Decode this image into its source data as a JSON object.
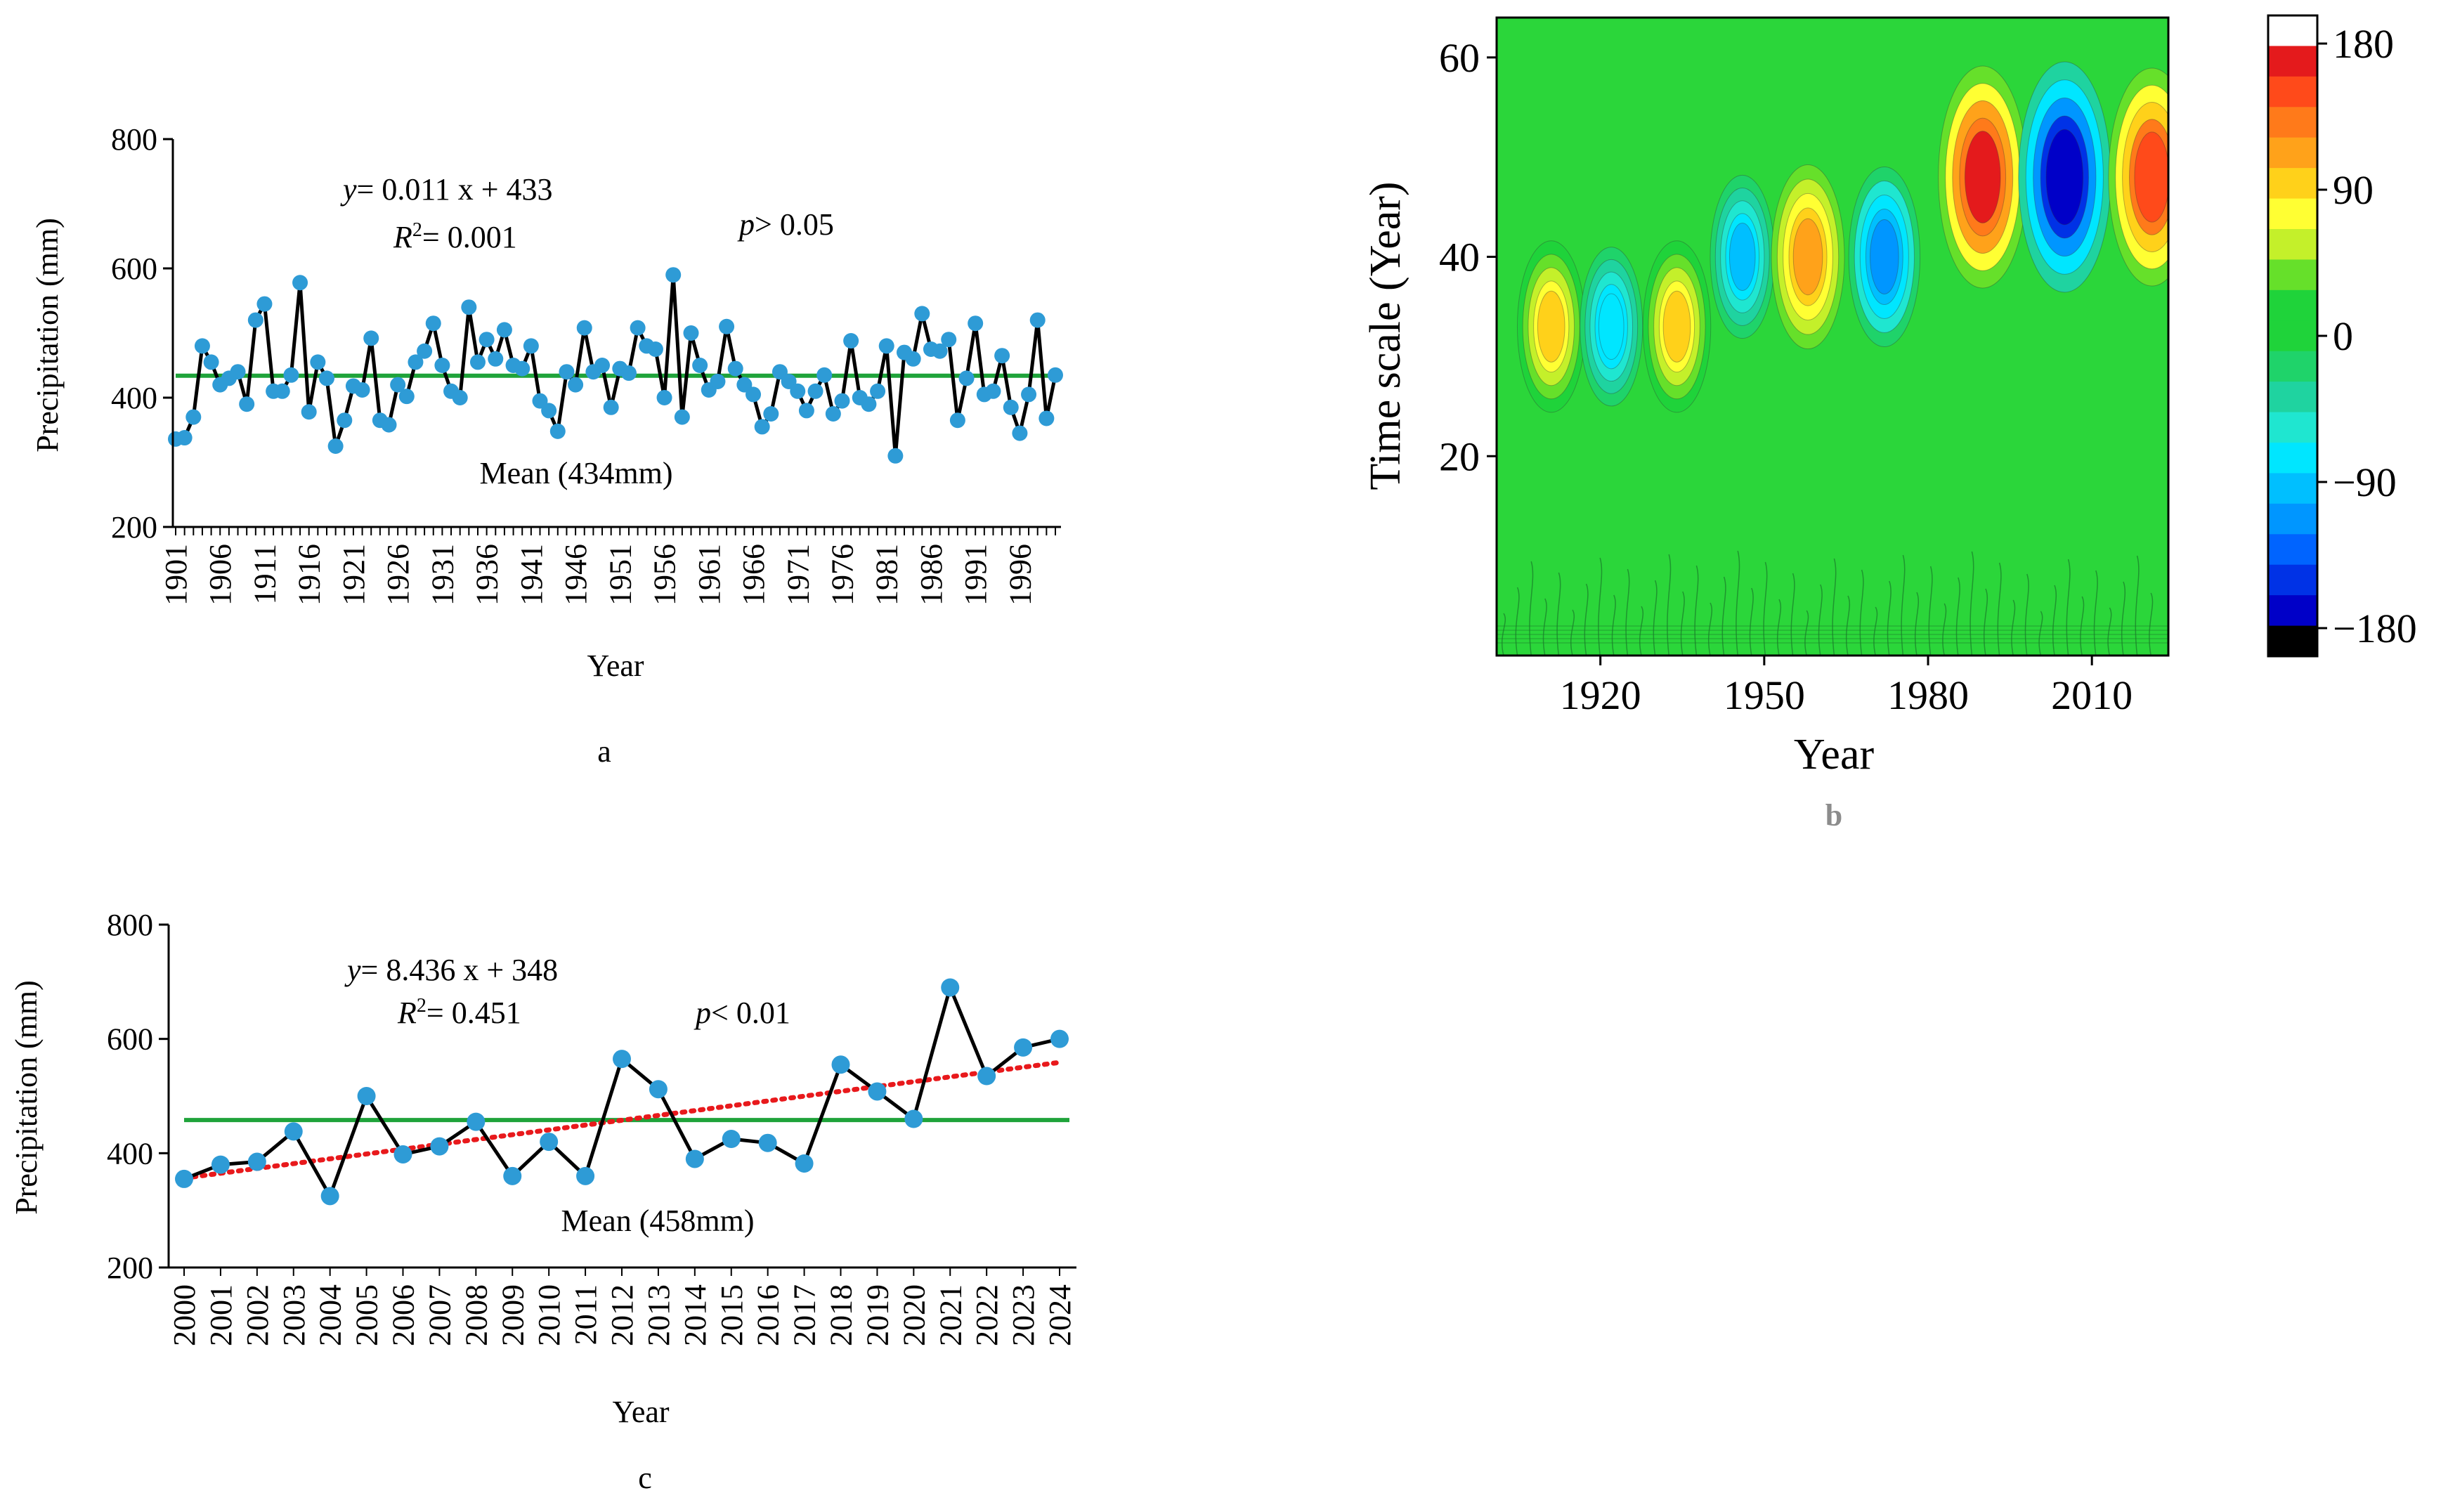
{
  "chart_data": [
    {
      "id": "a",
      "type": "line",
      "caption": "a",
      "xlabel": "Year",
      "ylabel": "Precipitation (mm)",
      "ylim": [
        200,
        800
      ],
      "yticks": [
        "200",
        "400",
        "600",
        "800"
      ],
      "xtick_labels": [
        "1901",
        "1906",
        "1911",
        "1916",
        "1921",
        "1926",
        "1931",
        "1936",
        "1941",
        "1946",
        "1951",
        "1956",
        "1961",
        "1966",
        "1971",
        "1976",
        "1981",
        "1986",
        "1991",
        "1996"
      ],
      "x": [
        1901,
        1902,
        1903,
        1904,
        1905,
        1906,
        1907,
        1908,
        1909,
        1910,
        1911,
        1912,
        1913,
        1914,
        1915,
        1916,
        1917,
        1918,
        1919,
        1920,
        1921,
        1922,
        1923,
        1924,
        1925,
        1926,
        1927,
        1928,
        1929,
        1930,
        1931,
        1932,
        1933,
        1934,
        1935,
        1936,
        1937,
        1938,
        1939,
        1940,
        1941,
        1942,
        1943,
        1944,
        1945,
        1946,
        1947,
        1948,
        1949,
        1950,
        1951,
        1952,
        1953,
        1954,
        1955,
        1956,
        1957,
        1958,
        1959,
        1960,
        1961,
        1962,
        1963,
        1964,
        1965,
        1966,
        1967,
        1968,
        1969,
        1970,
        1971,
        1972,
        1973,
        1974,
        1975,
        1976,
        1977,
        1978,
        1979,
        1980,
        1981,
        1982,
        1983,
        1984,
        1985,
        1986,
        1987,
        1988,
        1989,
        1990,
        1991,
        1992,
        1993,
        1994,
        1995,
        1996,
        1997,
        1998,
        1999,
        2000
      ],
      "series": [
        {
          "name": "Precipitation",
          "values": [
            336,
            338,
            370,
            480,
            455,
            420,
            430,
            440,
            390,
            520,
            545,
            410,
            410,
            435,
            578,
            378,
            455,
            430,
            325,
            365,
            418,
            412,
            492,
            365,
            358,
            420,
            402,
            455,
            472,
            515,
            450,
            410,
            400,
            540,
            455,
            490,
            460,
            505,
            450,
            445,
            480,
            395,
            380,
            348,
            440,
            420,
            508,
            440,
            450,
            385,
            445,
            438,
            508,
            480,
            475,
            400,
            590,
            370,
            500,
            450,
            412,
            425,
            510,
            445,
            420,
            405,
            355,
            375,
            440,
            425,
            410,
            380,
            410,
            435,
            375,
            395,
            488,
            400,
            390,
            410,
            480,
            310,
            470,
            460,
            530,
            475,
            472,
            490,
            365,
            430,
            515,
            405,
            410,
            465,
            385,
            345,
            405,
            520,
            368,
            435
          ]
        }
      ],
      "mean_value": 434,
      "mean_label": "Mean (434mm)",
      "equation_text": "= 0.011 x + 433",
      "r2_text": "= 0.001",
      "p_text": "> 0.05",
      "colors": {
        "line": "#000000",
        "marker": "#2e9bd6",
        "mean": "#1fa33a"
      }
    },
    {
      "id": "b",
      "type": "heatmap",
      "caption": "b",
      "xlabel": "Year",
      "ylabel": "Time scale (Year)",
      "xlim": [
        1901,
        2024
      ],
      "ylim": [
        0,
        64
      ],
      "xtick_labels": [
        "1920",
        "1950",
        "1980",
        "2010"
      ],
      "ytick_labels": [
        "20",
        "40",
        "60"
      ],
      "colorbar": {
        "range": [
          -180,
          180
        ],
        "labels": [
          "180",
          "90",
          "0",
          "−90",
          "−180"
        ],
        "colors": [
          "#ffffff",
          "#e41a1c",
          "#ff4a1a",
          "#ff7a1a",
          "#ffa21a",
          "#ffd11a",
          "#ffff33",
          "#c4f02a",
          "#66e02a",
          "#1fd33a",
          "#1fd33a",
          "#1fd36a",
          "#1fd3a0",
          "#1fe6d0",
          "#00e6ff",
          "#00bfff",
          "#0096ff",
          "#0064ff",
          "#0032e6",
          "#0000c8",
          "#000000"
        ]
      },
      "scale_lines": [
        {
          "period": 33,
          "cycles": [
            {
              "year": 1911,
              "amp": 95
            },
            {
              "year": 1922,
              "amp": -80
            },
            {
              "year": 1934,
              "amp": 95
            }
          ]
        },
        {
          "period": 40,
          "cycles": [
            {
              "year": 1946,
              "amp": -85
            },
            {
              "year": 1958,
              "amp": 110
            },
            {
              "year": 1972,
              "amp": -105
            }
          ]
        },
        {
          "period": 48,
          "cycles": [
            {
              "year": 1990,
              "amp": 155
            },
            {
              "year": 2005,
              "amp": -165
            },
            {
              "year": 2021,
              "amp": 150
            }
          ]
        }
      ]
    },
    {
      "id": "c",
      "type": "line",
      "caption": "c",
      "xlabel": "Year",
      "ylabel": "Precipitation (mm)",
      "ylim": [
        200,
        800
      ],
      "yticks": [
        "200",
        "400",
        "600",
        "800"
      ],
      "xtick_labels": [
        "2000",
        "2001",
        "2002",
        "2003",
        "2004",
        "2005",
        "2006",
        "2007",
        "2008",
        "2009",
        "2010",
        "2011",
        "2012",
        "2013",
        "2014",
        "2015",
        "2016",
        "2017",
        "2018",
        "2019",
        "2020",
        "2021",
        "2022",
        "2023",
        "2024"
      ],
      "x": [
        2000,
        2001,
        2002,
        2003,
        2004,
        2005,
        2006,
        2007,
        2008,
        2009,
        2010,
        2011,
        2012,
        2013,
        2014,
        2015,
        2016,
        2017,
        2018,
        2019,
        2020,
        2021,
        2022,
        2023,
        2024
      ],
      "series": [
        {
          "name": "Precipitation",
          "values": [
            355,
            380,
            385,
            438,
            325,
            500,
            398,
            412,
            455,
            360,
            420,
            360,
            565,
            512,
            390,
            425,
            418,
            382,
            555,
            508,
            460,
            690,
            535,
            585,
            600
          ]
        }
      ],
      "mean_value": 458,
      "mean_label": "Mean (458mm)",
      "trend": {
        "slope": 8.436,
        "intercept": 348
      },
      "equation_text": "= 8.436 x + 348",
      "r2_text": "= 0.451",
      "p_text": "< 0.01",
      "colors": {
        "line": "#000000",
        "marker": "#2e9bd6",
        "mean": "#1fa33a",
        "trend": "#e8191c"
      }
    }
  ]
}
